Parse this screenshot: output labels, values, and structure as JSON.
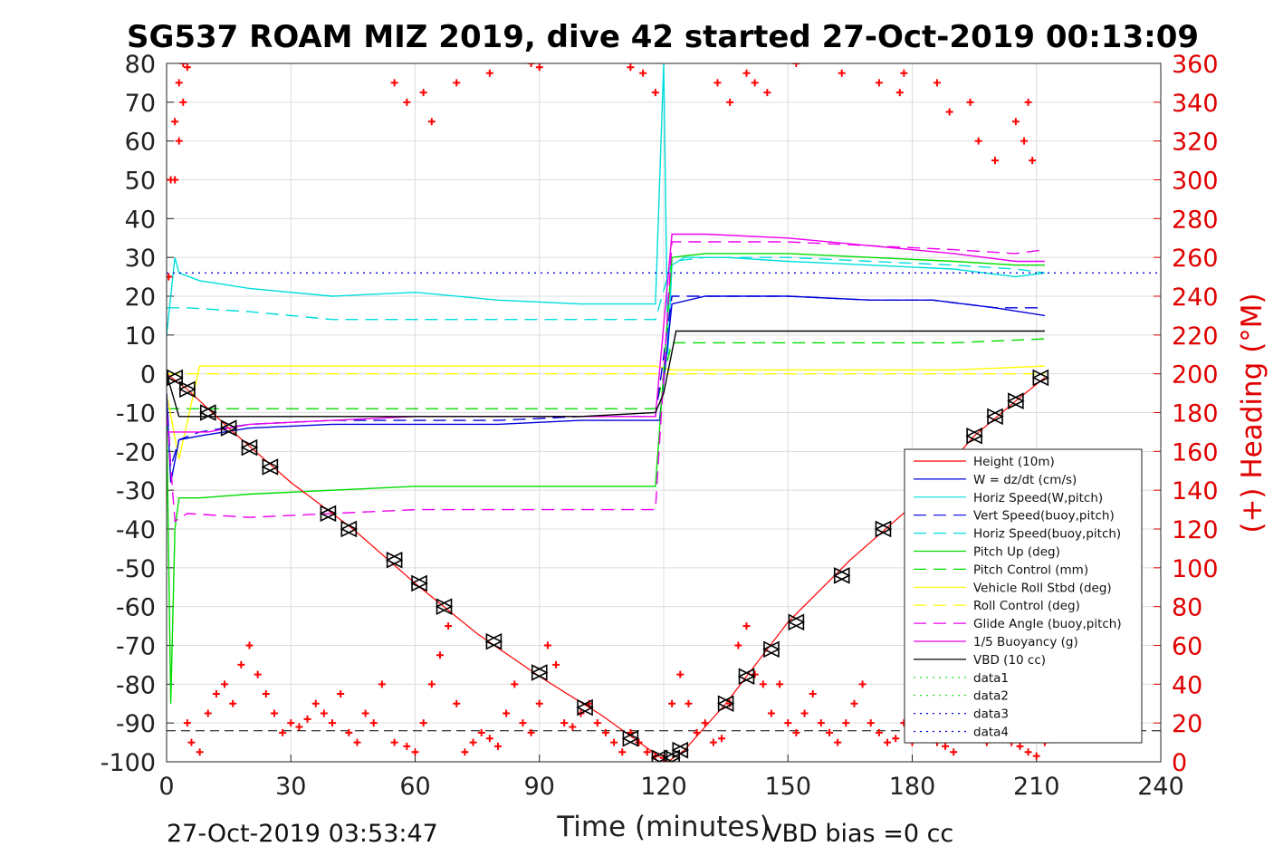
{
  "chart_data": {
    "type": "line",
    "title": "SG537 ROAM MIZ 2019, dive 42 started 27-Oct-2019 00:13:09",
    "xlabel": "Time (minutes)",
    "ylabel_right": "(+) Heading (°M)",
    "xlim": [
      0,
      240
    ],
    "ylim": [
      -100,
      80
    ],
    "ylim_right": [
      0,
      360
    ],
    "x_ticks": [
      "0",
      "30",
      "60",
      "90",
      "120",
      "150",
      "180",
      "210",
      "240"
    ],
    "y_ticks": [
      "80",
      "70",
      "60",
      "50",
      "40",
      "30",
      "20",
      "10",
      "0",
      "-10",
      "-20",
      "-30",
      "-40",
      "-50",
      "-60",
      "-70",
      "-80",
      "-90",
      "-100"
    ],
    "y_ticks_right": [
      "360",
      "340",
      "320",
      "300",
      "280",
      "260",
      "240",
      "220",
      "200",
      "180",
      "160",
      "140",
      "120",
      "100",
      "80",
      "60",
      "40",
      "20",
      "0"
    ],
    "grid": true,
    "legend_position": "lower-right",
    "footer_left": "27-Oct-2019 03:53:47",
    "footer_right": "VBD bias =0 cc",
    "series": [
      {
        "name": "Height (10m)",
        "color": "#ff0000",
        "style": "solid",
        "x": [
          0,
          5,
          15,
          30,
          45,
          60,
          75,
          90,
          105,
          118,
          121,
          125,
          135,
          150,
          165,
          180,
          195,
          205,
          212
        ],
        "y": [
          0,
          -4,
          -14,
          -28,
          -40,
          -54,
          -67,
          -78,
          -88,
          -98,
          -100,
          -97,
          -85,
          -64,
          -48,
          -34,
          -16,
          -7,
          -1
        ]
      },
      {
        "name": "W = dz/dt (cm/s)",
        "color": "#0000dd",
        "style": "solid",
        "x": [
          0,
          1,
          3,
          8,
          20,
          40,
          60,
          80,
          100,
          118,
          119,
          122,
          130,
          150,
          170,
          185,
          200,
          212
        ],
        "y": [
          -5,
          -28,
          -17,
          -16,
          -14,
          -13,
          -13,
          -13,
          -12,
          -12,
          -12,
          18,
          20,
          20,
          19,
          19,
          17,
          15
        ]
      },
      {
        "name": "Horiz Speed(W,pitch)",
        "color": "#00dddd",
        "style": "solid",
        "x": [
          0,
          2,
          3,
          8,
          20,
          40,
          60,
          80,
          100,
          118,
          120,
          121,
          122,
          125,
          135,
          150,
          170,
          190,
          205,
          212
        ],
        "y": [
          10,
          30,
          26,
          24,
          22,
          20,
          21,
          19,
          18,
          18,
          80,
          5,
          28,
          30,
          30,
          29,
          28,
          27,
          25,
          26
        ]
      },
      {
        "name": "Vert Speed(buoy,pitch)",
        "color": "#0000dd",
        "style": "dashed",
        "x": [
          0,
          1,
          3,
          8,
          20,
          40,
          60,
          80,
          100,
          118,
          122,
          130,
          150,
          170,
          185,
          200,
          212
        ],
        "y": [
          -5,
          -24,
          -17,
          -15,
          -13,
          -12,
          -12,
          -12,
          -11,
          -11,
          20,
          20,
          20,
          19,
          19,
          17,
          17
        ]
      },
      {
        "name": "Horiz Speed(buoy,pitch)",
        "color": "#00dddd",
        "style": "dashed",
        "x": [
          0,
          5,
          20,
          40,
          60,
          80,
          100,
          118,
          122,
          130,
          150,
          170,
          190,
          205,
          212
        ],
        "y": [
          17,
          17,
          16,
          14,
          14,
          14,
          14,
          14,
          29,
          30,
          30,
          29,
          28,
          27,
          26
        ]
      },
      {
        "name": "Pitch Up (deg)",
        "color": "#00dd00",
        "style": "solid",
        "x": [
          0,
          1,
          2,
          3,
          8,
          20,
          40,
          60,
          80,
          100,
          118,
          122,
          130,
          150,
          170,
          190,
          205,
          212
        ],
        "y": [
          -10,
          -85,
          -40,
          -32,
          -32,
          -31,
          -30,
          -29,
          -29,
          -29,
          -29,
          30,
          31,
          31,
          30,
          29,
          28,
          28
        ]
      },
      {
        "name": "Pitch Control (mm)",
        "color": "#00dd00",
        "style": "dashed",
        "x": [
          0,
          3,
          8,
          20,
          40,
          60,
          80,
          100,
          118,
          122,
          130,
          150,
          170,
          190,
          212
        ],
        "y": [
          -9,
          -9,
          -9,
          -9,
          -9,
          -9,
          -9,
          -9,
          -9,
          8,
          8,
          8,
          8,
          8,
          9
        ]
      },
      {
        "name": "Vehicle Roll Stbd (deg)",
        "color": "#ffff00",
        "style": "solid",
        "x": [
          0,
          3,
          8,
          20,
          40,
          60,
          80,
          100,
          118,
          122,
          130,
          150,
          170,
          190,
          212
        ],
        "y": [
          -5,
          -22,
          2,
          2,
          2,
          2,
          2,
          2,
          2,
          1,
          1,
          1,
          1,
          1,
          2
        ]
      },
      {
        "name": "Roll Control (deg)",
        "color": "#ffff00",
        "style": "dashed",
        "x": [
          0,
          3,
          8,
          20,
          40,
          60,
          80,
          100,
          118,
          122,
          130,
          150,
          170,
          190,
          212
        ],
        "y": [
          0,
          0,
          0,
          0,
          0,
          0,
          0,
          0,
          0,
          0,
          0,
          0,
          0,
          0,
          0
        ]
      },
      {
        "name": "Glide Angle (buoy,pitch)",
        "color": "#ee00ee",
        "style": "dashed",
        "x": [
          0,
          2,
          5,
          20,
          40,
          60,
          80,
          100,
          118,
          122,
          130,
          150,
          170,
          190,
          205,
          212
        ],
        "y": [
          -10,
          -38,
          -36,
          -37,
          -36,
          -35,
          -35,
          -35,
          -35,
          34,
          34,
          34,
          33,
          32,
          31,
          32
        ]
      },
      {
        "name": "1/5 Buoyancy (g)",
        "color": "#ee00ee",
        "style": "solid",
        "x": [
          0,
          3,
          10,
          20,
          40,
          60,
          80,
          100,
          118,
          122,
          130,
          150,
          170,
          190,
          205,
          212
        ],
        "y": [
          -15,
          -15,
          -15,
          -13,
          -12,
          -11,
          -11,
          -11,
          -11,
          36,
          36,
          35,
          33,
          31,
          29,
          29
        ]
      },
      {
        "name": "VBD (10 cc)",
        "color": "#000000",
        "style": "solid",
        "x": [
          0,
          3,
          10,
          20,
          40,
          60,
          80,
          100,
          118,
          120,
          123,
          130,
          150,
          170,
          190,
          212
        ],
        "y": [
          0,
          -11,
          -11,
          -11,
          -11,
          -11,
          -11,
          -11,
          -10,
          -5,
          11,
          11,
          11,
          11,
          11,
          11
        ]
      },
      {
        "name": "data1",
        "color": "#00dd00",
        "style": "dotted",
        "x": [],
        "y": []
      },
      {
        "name": "data2",
        "color": "#00dd00",
        "style": "dotted",
        "x": [],
        "y": []
      },
      {
        "name": "data3",
        "color": "#0000dd",
        "style": "dotted",
        "x": [
          0,
          240
        ],
        "y": [
          26,
          26
        ]
      },
      {
        "name": "data4",
        "color": "#0000dd",
        "style": "dotted",
        "x": [
          0,
          240
        ],
        "y": [
          -26,
          -26
        ]
      }
    ],
    "vbd_bias_line": {
      "color": "#000000",
      "style": "dashed",
      "y": -92
    },
    "heading": {
      "color": "#ff0000",
      "marker": "+",
      "x": [
        0.5,
        1,
        2,
        3,
        4,
        5,
        6,
        8,
        10,
        12,
        14,
        16,
        18,
        20,
        22,
        24,
        26,
        28,
        30,
        32,
        34,
        36,
        38,
        40,
        42,
        44,
        46,
        48,
        50,
        52,
        55,
        58,
        60,
        62,
        64,
        66,
        68,
        70,
        72,
        74,
        76,
        78,
        80,
        82,
        84,
        86,
        88,
        90,
        92,
        94,
        96,
        98,
        100,
        102,
        104,
        106,
        108,
        110,
        112,
        114,
        116,
        118,
        120,
        122,
        124,
        126,
        128,
        130,
        132,
        134,
        136,
        138,
        140,
        142,
        144,
        146,
        148,
        150,
        152,
        154,
        156,
        158,
        160,
        162,
        164,
        166,
        168,
        170,
        172,
        174,
        176,
        178,
        180,
        182,
        184,
        186,
        188,
        190,
        192,
        194,
        196,
        198,
        200,
        202,
        204,
        206,
        208,
        210,
        212
      ],
      "y": [
        250,
        300,
        330,
        350,
        360,
        20,
        10,
        5,
        25,
        35,
        40,
        30,
        50,
        60,
        45,
        35,
        25,
        15,
        20,
        18,
        22,
        30,
        25,
        20,
        35,
        15,
        10,
        25,
        20,
        40,
        10,
        8,
        5,
        20,
        40,
        55,
        70,
        30,
        5,
        10,
        15,
        12,
        8,
        25,
        40,
        20,
        15,
        30,
        60,
        50,
        20,
        18,
        25,
        30,
        20,
        15,
        10,
        5,
        15,
        10,
        5,
        3,
        2,
        30,
        45,
        30,
        15,
        20,
        10,
        12,
        30,
        60,
        70,
        45,
        40,
        25,
        40,
        20,
        15,
        25,
        35,
        20,
        15,
        10,
        20,
        30,
        40,
        20,
        15,
        10,
        12,
        20,
        10,
        18,
        15,
        10,
        8,
        5,
        12,
        15,
        18,
        10,
        15,
        20,
        10,
        8,
        5,
        3,
        10
      ],
      "x_top": [
        2,
        3,
        4,
        5,
        55,
        58,
        62,
        64,
        70,
        78,
        88,
        90,
        112,
        115,
        118,
        133,
        136,
        140,
        142,
        145,
        152,
        163,
        172,
        177,
        178,
        186,
        189,
        194,
        196,
        200,
        205,
        207,
        208,
        209
      ],
      "y_top": [
        300,
        320,
        340,
        358,
        350,
        340,
        345,
        330,
        350,
        355,
        360,
        358,
        358,
        355,
        345,
        350,
        340,
        355,
        350,
        345,
        360,
        355,
        350,
        345,
        355,
        350,
        335,
        340,
        320,
        310,
        330,
        320,
        340,
        310
      ]
    },
    "markers": {
      "triangles_x": [
        2,
        5,
        10,
        15,
        20,
        25,
        39,
        44,
        55,
        61,
        67,
        79,
        90,
        101,
        112,
        119,
        122,
        124,
        135,
        140,
        146,
        152,
        163,
        173,
        195,
        200,
        205,
        211
      ],
      "triangles_y": [
        -1,
        -4,
        -10,
        -14,
        -19,
        -24,
        -36,
        -40,
        -48,
        -54,
        -60,
        -69,
        -77,
        -86,
        -94,
        -99,
        -99,
        -97,
        -85,
        -78,
        -71,
        -64,
        -52,
        -40,
        -16,
        -11,
        -7,
        -1
      ]
    }
  }
}
